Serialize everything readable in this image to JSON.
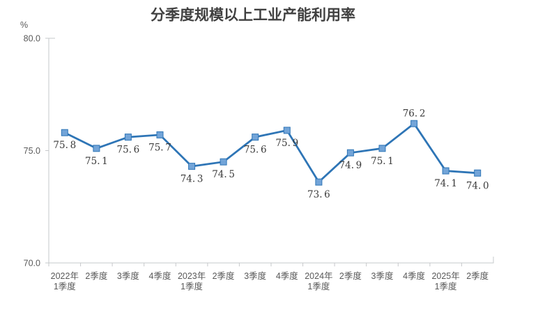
{
  "page": {
    "background": "#ffffff"
  },
  "chart_data": {
    "type": "line",
    "title": "分季度规模以上工业产能利用率",
    "unit_label": "%",
    "categories": [
      [
        "2022年",
        "1季度"
      ],
      [
        "2季度"
      ],
      [
        "3季度"
      ],
      [
        "4季度"
      ],
      [
        "2023年",
        "1季度"
      ],
      [
        "2季度"
      ],
      [
        "3季度"
      ],
      [
        "4季度"
      ],
      [
        "2024年",
        "1季度"
      ],
      [
        "2季度"
      ],
      [
        "3季度"
      ],
      [
        "4季度"
      ],
      [
        "2025年",
        "1季度"
      ],
      [
        "2季度"
      ]
    ],
    "values": [
      75.8,
      75.1,
      75.6,
      75.7,
      74.3,
      74.5,
      75.6,
      75.9,
      73.6,
      74.9,
      75.1,
      76.2,
      74.1,
      74.0
    ],
    "data_label_positions": [
      "below",
      "below",
      "below",
      "below",
      "below",
      "below",
      "below",
      "below",
      "below",
      "below",
      "below",
      "above",
      "below",
      "below"
    ],
    "ylim": [
      70.0,
      80.0
    ],
    "yticks": [
      {
        "value": 80.0,
        "label": "80.0"
      },
      {
        "value": 75.0,
        "label": "75.0"
      },
      {
        "value": 70.0,
        "label": "70.0"
      }
    ],
    "grid": false,
    "legend": false,
    "colors": {
      "line": "#2E75B6",
      "marker_fill": "#72A4D8",
      "marker_border": "#2F76B7",
      "axis": "#C6C8CB",
      "tick_text": "#595959",
      "data_label": "#3A3A3A",
      "title": "#404040"
    }
  }
}
